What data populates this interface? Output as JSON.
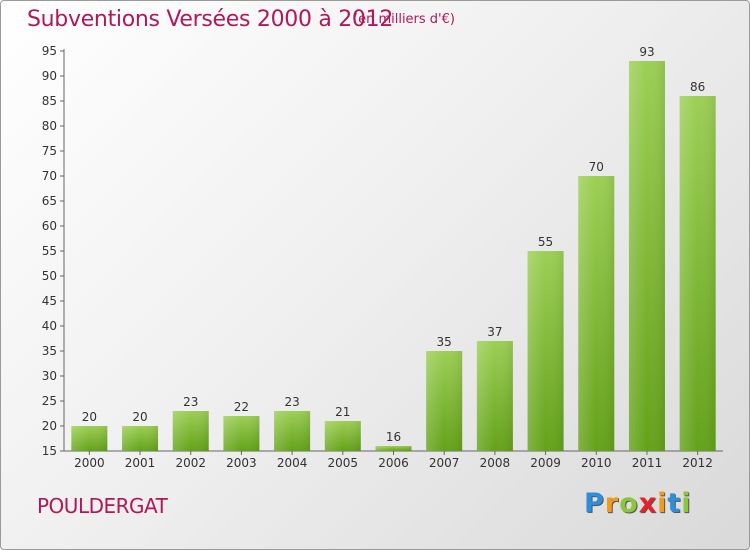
{
  "title": "Subventions Versées 2000 à 2012",
  "subtitle": "(en milliers d'€)",
  "town": "POULDERGAT",
  "logo": {
    "letters": [
      "P",
      "r",
      "o",
      "x",
      "i",
      "t",
      "i"
    ],
    "colors": [
      "#2e8fd8",
      "#f29a1e",
      "#8bc63e",
      "#e2232a",
      "#f29a1e",
      "#2e8fd8",
      "#8bc63e"
    ]
  },
  "colors": {
    "accent": "#b0185a",
    "bar": "#7ab62e"
  },
  "chart_data": {
    "type": "bar",
    "categories": [
      "2000",
      "2001",
      "2002",
      "2003",
      "2004",
      "2005",
      "2006",
      "2007",
      "2008",
      "2009",
      "2010",
      "2011",
      "2012"
    ],
    "values": [
      20,
      20,
      23,
      22,
      23,
      21,
      16,
      35,
      37,
      55,
      70,
      93,
      86
    ],
    "yticks": [
      15,
      20,
      25,
      30,
      35,
      40,
      45,
      50,
      55,
      60,
      65,
      70,
      75,
      80,
      85,
      90,
      95
    ],
    "ylim": [
      15,
      95
    ],
    "grid": false,
    "xlabel": "",
    "ylabel": ""
  }
}
